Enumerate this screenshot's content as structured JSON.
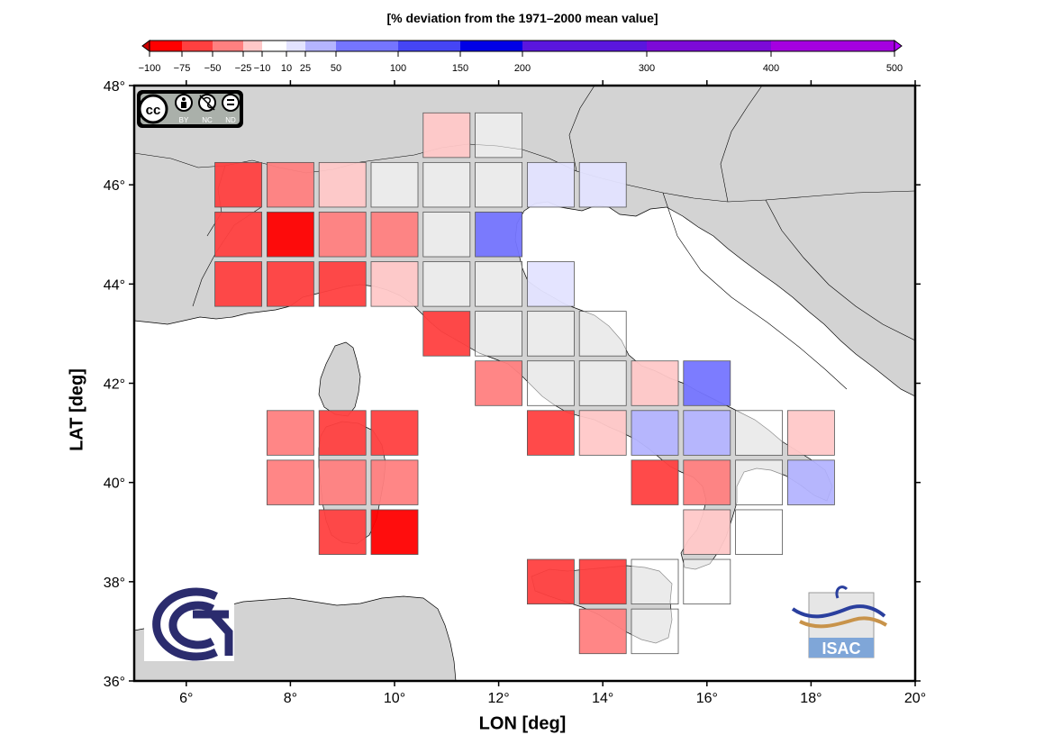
{
  "scale_title": "[% deviation from the 1971–2000 mean value]",
  "xlabel": "LON [deg]",
  "ylabel": "LAT [deg]",
  "license_badge": {
    "label": "cc",
    "icons": [
      "BY",
      "NC",
      "ND"
    ]
  },
  "isac_logo_text": "ISAC",
  "map": {
    "lon_range": [
      5,
      20
    ],
    "lat_range": [
      36,
      48
    ],
    "xticks": [
      6,
      8,
      10,
      12,
      14,
      16,
      18,
      20
    ],
    "yticks": [
      36,
      38,
      40,
      42,
      44,
      46,
      48
    ],
    "land_color": "#d3d3d3",
    "sea_color": "#ffffff"
  },
  "colorbar": {
    "tick_labels": [
      "−100",
      "−75",
      "−50",
      "−25",
      "−10",
      "10",
      "25",
      "50",
      "100",
      "150",
      "200",
      "300",
      "400",
      "500"
    ],
    "segments": [
      {
        "color": "#ff0000"
      },
      {
        "color": "#ff4040"
      },
      {
        "color": "#ff8080"
      },
      {
        "color": "#ffc8c8"
      },
      {
        "color": "#ffffff"
      },
      {
        "color": "#e3e3ff"
      },
      {
        "color": "#b4b4ff"
      },
      {
        "color": "#7575ff"
      },
      {
        "color": "#4545f5"
      },
      {
        "color": "#0000e6"
      },
      {
        "color": "#5a16de"
      },
      {
        "color": "#7c0ad8"
      },
      {
        "color": "#a500e0"
      }
    ],
    "low_arrow_color": "#cc0000",
    "high_arrow_color": "#b400ff"
  },
  "grid_cells": [
    {
      "lon": 11,
      "lat": 47,
      "color": "#ffc8c8"
    },
    {
      "lon": 12,
      "lat": 47,
      "color": "#ffffff"
    },
    {
      "lon": 7,
      "lat": 46,
      "color": "#ff4040"
    },
    {
      "lon": 8,
      "lat": 46,
      "color": "#ff8080"
    },
    {
      "lon": 9,
      "lat": 46,
      "color": "#ffc8c8"
    },
    {
      "lon": 10,
      "lat": 46,
      "color": "#ffffff"
    },
    {
      "lon": 11,
      "lat": 46,
      "color": "#ffffff"
    },
    {
      "lon": 12,
      "lat": 46,
      "color": "#ffffff"
    },
    {
      "lon": 13,
      "lat": 46,
      "color": "#e3e3ff"
    },
    {
      "lon": 14,
      "lat": 46,
      "color": "#e3e3ff"
    },
    {
      "lon": 7,
      "lat": 45,
      "color": "#ff4040"
    },
    {
      "lon": 8,
      "lat": 45,
      "color": "#ff0000"
    },
    {
      "lon": 9,
      "lat": 45,
      "color": "#ff8080"
    },
    {
      "lon": 10,
      "lat": 45,
      "color": "#ff8080"
    },
    {
      "lon": 11,
      "lat": 45,
      "color": "#ffffff"
    },
    {
      "lon": 12,
      "lat": 45,
      "color": "#7575ff"
    },
    {
      "lon": 7,
      "lat": 44,
      "color": "#ff4040"
    },
    {
      "lon": 8,
      "lat": 44,
      "color": "#ff4040"
    },
    {
      "lon": 9,
      "lat": 44,
      "color": "#ff4040"
    },
    {
      "lon": 10,
      "lat": 44,
      "color": "#ffc8c8"
    },
    {
      "lon": 11,
      "lat": 44,
      "color": "#ffffff"
    },
    {
      "lon": 12,
      "lat": 44,
      "color": "#ffffff"
    },
    {
      "lon": 13,
      "lat": 44,
      "color": "#e3e3ff"
    },
    {
      "lon": 11,
      "lat": 43,
      "color": "#ff4040"
    },
    {
      "lon": 12,
      "lat": 43,
      "color": "#ffffff"
    },
    {
      "lon": 13,
      "lat": 43,
      "color": "#ffffff"
    },
    {
      "lon": 14,
      "lat": 43,
      "color": "#ffffff"
    },
    {
      "lon": 12,
      "lat": 42,
      "color": "#ff8080"
    },
    {
      "lon": 13,
      "lat": 42,
      "color": "#ffffff"
    },
    {
      "lon": 14,
      "lat": 42,
      "color": "#ffffff"
    },
    {
      "lon": 15,
      "lat": 42,
      "color": "#ffc8c8"
    },
    {
      "lon": 16,
      "lat": 42,
      "color": "#7575ff"
    },
    {
      "lon": 8,
      "lat": 41,
      "color": "#ff8080"
    },
    {
      "lon": 9,
      "lat": 41,
      "color": "#ff4040"
    },
    {
      "lon": 10,
      "lat": 41,
      "color": "#ff4040"
    },
    {
      "lon": 13,
      "lat": 41,
      "color": "#ff4040"
    },
    {
      "lon": 14,
      "lat": 41,
      "color": "#ffc8c8"
    },
    {
      "lon": 15,
      "lat": 41,
      "color": "#b4b4ff"
    },
    {
      "lon": 16,
      "lat": 41,
      "color": "#b4b4ff"
    },
    {
      "lon": 17,
      "lat": 41,
      "color": "#ffffff"
    },
    {
      "lon": 18,
      "lat": 41,
      "color": "#ffc8c8"
    },
    {
      "lon": 8,
      "lat": 40,
      "color": "#ff8080"
    },
    {
      "lon": 9,
      "lat": 40,
      "color": "#ff8080"
    },
    {
      "lon": 10,
      "lat": 40,
      "color": "#ff8080"
    },
    {
      "lon": 15,
      "lat": 40,
      "color": "#ff4040"
    },
    {
      "lon": 16,
      "lat": 40,
      "color": "#ff8080"
    },
    {
      "lon": 17,
      "lat": 40,
      "color": "#ffffff"
    },
    {
      "lon": 18,
      "lat": 40,
      "color": "#b4b4ff"
    },
    {
      "lon": 9,
      "lat": 39,
      "color": "#ff4040"
    },
    {
      "lon": 10,
      "lat": 39,
      "color": "#ff0000"
    },
    {
      "lon": 16,
      "lat": 39,
      "color": "#ffc8c8"
    },
    {
      "lon": 17,
      "lat": 39,
      "color": "#ffffff"
    },
    {
      "lon": 13,
      "lat": 38,
      "color": "#ff4040"
    },
    {
      "lon": 14,
      "lat": 38,
      "color": "#ff4040"
    },
    {
      "lon": 15,
      "lat": 38,
      "color": "#ffffff"
    },
    {
      "lon": 16,
      "lat": 38,
      "color": "#ffffff"
    },
    {
      "lon": 14,
      "lat": 37,
      "color": "#ff8080"
    },
    {
      "lon": 15,
      "lat": 37,
      "color": "#ffffff"
    }
  ]
}
